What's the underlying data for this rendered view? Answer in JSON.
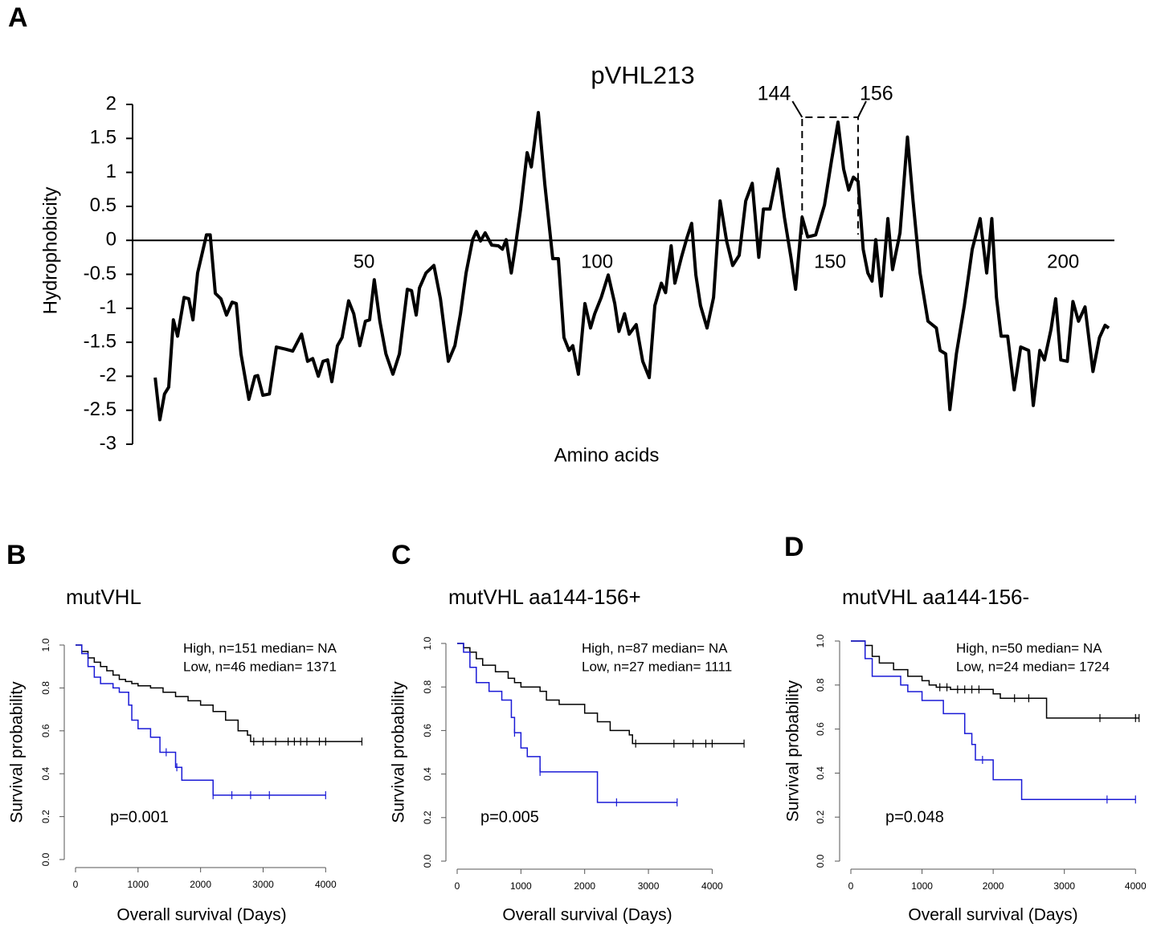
{
  "chart_data": [
    {
      "type": "line",
      "panel": "A",
      "title": "pVHL213",
      "x_label": "Amino acids",
      "y_label": "Hydrophobicity",
      "xlim": [
        0,
        211
      ],
      "ylim": [
        -3,
        2
      ],
      "xticks": [
        50,
        100,
        150,
        200
      ],
      "yticks": [
        -3,
        -2.5,
        -2,
        -1.5,
        -1,
        -0.5,
        0,
        0.5,
        1,
        1.5,
        2
      ],
      "bracket": [
        144,
        156
      ],
      "color": "#000000",
      "x": [
        5.2,
        6.2,
        7.2,
        8.1,
        9.1,
        10,
        11.4,
        12.4,
        13.3,
        14.3,
        16.2,
        17,
        18.1,
        19.3,
        20.5,
        21.7,
        22.6,
        23.6,
        25.3,
        26.6,
        27.2,
        28.3,
        29.7,
        31.2,
        33.1,
        34.7,
        36.6,
        37.9,
        39,
        40.2,
        41.2,
        42.2,
        43.1,
        44.3,
        45.3,
        46.7,
        47.8,
        49.1,
        50.3,
        51.2,
        52.2,
        53.4,
        54.7,
        56.2,
        57.6,
        59.3,
        60.2,
        61.2,
        61.9,
        63.3,
        65,
        66.4,
        68.1,
        69.5,
        70.7,
        71.9,
        73.3,
        74.1,
        75,
        76,
        77.4,
        78.8,
        79.7,
        80.5,
        81.6,
        82.4,
        83.6,
        85,
        85.9,
        87.4,
        88.8,
        90.5,
        91.7,
        92.9,
        94,
        94.8,
        96,
        97.4,
        98.6,
        99.5,
        100.9,
        102.4,
        103.8,
        104.7,
        105.9,
        106.9,
        108.4,
        109.8,
        111.2,
        112.4,
        113.8,
        114.7,
        115.9,
        116.7,
        118.1,
        119.3,
        120.3,
        121.2,
        122.2,
        123.6,
        125,
        126.4,
        127.8,
        129.1,
        130.5,
        131.9,
        133.3,
        134.7,
        135.7,
        137.1,
        138.8,
        140.2,
        141.6,
        142.6,
        144,
        145.2,
        146.9,
        148.8,
        150.3,
        151.7,
        152.9,
        154,
        155,
        156,
        157.1,
        158.1,
        159,
        159.8,
        161,
        162.4,
        163.4,
        165,
        166.6,
        167.8,
        169.3,
        171,
        172.8,
        173.6,
        174.8,
        175.7,
        177.1,
        178.8,
        180.5,
        182.2,
        183.6,
        184.7,
        185.7,
        186.7,
        188.1,
        189.5,
        190.9,
        192.6,
        193.6,
        195,
        196,
        197.4,
        198.4,
        199.5,
        200.9,
        202.1,
        203.3,
        204.7,
        206.4,
        207.8,
        209,
        209.8
      ],
      "values": [
        -2.02,
        -2.64,
        -2.26,
        -2.16,
        -1.17,
        -1.41,
        -0.84,
        -0.86,
        -1.17,
        -0.48,
        0.08,
        0.08,
        -0.78,
        -0.86,
        -1.1,
        -0.91,
        -0.93,
        -1.67,
        -2.34,
        -2.0,
        -1.99,
        -2.28,
        -2.26,
        -1.57,
        -1.6,
        -1.63,
        -1.38,
        -1.78,
        -1.74,
        -2.0,
        -1.78,
        -1.76,
        -2.08,
        -1.55,
        -1.43,
        -0.89,
        -1.08,
        -1.55,
        -1.19,
        -1.17,
        -0.58,
        -1.19,
        -1.67,
        -1.97,
        -1.67,
        -0.72,
        -0.74,
        -1.1,
        -0.7,
        -0.48,
        -0.37,
        -0.86,
        -1.78,
        -1.55,
        -1.08,
        -0.48,
        0.01,
        0.13,
        -0.01,
        0.11,
        -0.07,
        -0.08,
        -0.13,
        0.01,
        -0.48,
        -0.13,
        0.46,
        1.29,
        1.08,
        1.88,
        0.82,
        -0.27,
        -0.27,
        -1.43,
        -1.62,
        -1.55,
        -1.97,
        -0.93,
        -1.29,
        -1.08,
        -0.84,
        -0.51,
        -0.93,
        -1.34,
        -1.08,
        -1.38,
        -1.24,
        -1.78,
        -2.02,
        -0.96,
        -0.63,
        -0.77,
        -0.08,
        -0.63,
        -0.25,
        0.04,
        0.25,
        -0.51,
        -0.96,
        -1.29,
        -0.84,
        0.58,
        -0.01,
        -0.37,
        -0.22,
        0.58,
        0.84,
        -0.25,
        0.46,
        0.46,
        1.05,
        0.34,
        -0.25,
        -0.72,
        0.34,
        0.05,
        0.08,
        0.52,
        1.17,
        1.74,
        1.05,
        0.74,
        0.93,
        0.87,
        -0.13,
        -0.48,
        -0.6,
        0.01,
        -0.82,
        0.32,
        -0.43,
        0.11,
        1.52,
        0.58,
        -0.48,
        -1.19,
        -1.29,
        -1.62,
        -1.67,
        -2.49,
        -1.67,
        -0.96,
        -0.13,
        0.32,
        -0.48,
        0.32,
        -0.84,
        -1.41,
        -1.41,
        -2.2,
        -1.57,
        -1.62,
        -2.43,
        -1.62,
        -1.76,
        -1.31,
        -0.86,
        -1.76,
        -1.78,
        -0.9,
        -1.19,
        -0.98,
        -1.93,
        -1.43,
        -1.25,
        -1.29
      ]
    },
    {
      "type": "survival",
      "panel": "B",
      "title": "mutVHL",
      "x_label": "Overall survival (Days)",
      "y_label": "Survival probability",
      "annotation": "p=0.001",
      "xlim": [
        0,
        4600
      ],
      "ylim": [
        0,
        1
      ],
      "xticks": [
        0,
        1000,
        2000,
        3000,
        4000
      ],
      "yticks": [
        {
          "value": 0,
          "label": "0.0"
        },
        0.2,
        0.4,
        0.6,
        0.8,
        {
          "value": 1,
          "label": "1.0"
        }
      ],
      "series": [
        {
          "name": "High, n=151 median= NA",
          "color": "#000000",
          "x": [
            0,
            100,
            200,
            300,
            400,
            500,
            600,
            700,
            800,
            900,
            1000,
            1200,
            1400,
            1600,
            1800,
            2000,
            2200,
            2400,
            2600,
            2750,
            2800,
            4580
          ],
          "values": [
            1,
            0.97,
            0.94,
            0.92,
            0.9,
            0.88,
            0.86,
            0.84,
            0.83,
            0.82,
            0.81,
            0.8,
            0.78,
            0.76,
            0.74,
            0.72,
            0.69,
            0.65,
            0.6,
            0.58,
            0.55,
            0.55
          ],
          "censored": [
            2850,
            3000,
            3200,
            3400,
            3500,
            3600,
            3700,
            3900,
            4000,
            4580
          ]
        },
        {
          "name": "Low, n=46 median= 1371",
          "color": "#1a1ad6",
          "x": [
            0,
            100,
            200,
            300,
            400,
            600,
            700,
            850,
            900,
            1000,
            1200,
            1350,
            1600,
            1700,
            2200,
            4000
          ],
          "values": [
            1,
            0.96,
            0.9,
            0.85,
            0.82,
            0.8,
            0.78,
            0.72,
            0.65,
            0.61,
            0.57,
            0.5,
            0.43,
            0.37,
            0.3,
            0.3
          ],
          "censored": [
            1450,
            1620,
            2200,
            2500,
            2800,
            3100,
            4000
          ]
        }
      ]
    },
    {
      "type": "survival",
      "panel": "C",
      "title": "mutVHL aa144-156+",
      "x_label": "Overall survival (Days)",
      "y_label": "Survival probability",
      "annotation": "p=0.005",
      "xlim": [
        0,
        4600
      ],
      "ylim": [
        0,
        1
      ],
      "xticks": [
        0,
        1000,
        2000,
        3000,
        4000
      ],
      "yticks": [
        {
          "value": 0,
          "label": "0.0"
        },
        0.2,
        0.4,
        0.6,
        0.8,
        {
          "value": 1,
          "label": "1.0"
        }
      ],
      "series": [
        {
          "name": "High, n=87 median= NA",
          "color": "#000000",
          "x": [
            0,
            100,
            200,
            300,
            400,
            600,
            800,
            900,
            1000,
            1300,
            1400,
            1600,
            2000,
            2200,
            2400,
            2700,
            2750,
            4500
          ],
          "values": [
            1,
            0.98,
            0.96,
            0.93,
            0.9,
            0.87,
            0.84,
            0.82,
            0.8,
            0.78,
            0.74,
            0.72,
            0.68,
            0.64,
            0.6,
            0.58,
            0.54,
            0.54
          ],
          "censored": [
            2800,
            3400,
            3700,
            3900,
            4000,
            4500
          ]
        },
        {
          "name": "Low, n=27 median= 1111",
          "color": "#1a1ad6",
          "x": [
            0,
            100,
            200,
            300,
            500,
            700,
            850,
            900,
            1000,
            1100,
            1300,
            2200,
            3450
          ],
          "values": [
            1,
            0.96,
            0.89,
            0.82,
            0.78,
            0.74,
            0.66,
            0.59,
            0.52,
            0.48,
            0.41,
            0.27,
            0.27
          ],
          "censored": [
            900,
            1300,
            2500,
            3450
          ]
        }
      ]
    },
    {
      "type": "survival",
      "panel": "D",
      "title": "mutVHL aa144-156-",
      "x_label": "Overall survival (Days)",
      "y_label": "Survival probability",
      "annotation": "p=0.048",
      "xlim": [
        0,
        4200
      ],
      "ylim": [
        0,
        1
      ],
      "xticks": [
        0,
        1000,
        2000,
        3000,
        4000
      ],
      "yticks": [
        {
          "value": 0,
          "label": "0.0"
        },
        0.2,
        0.4,
        0.6,
        0.8,
        {
          "value": 1,
          "label": "1.0"
        }
      ],
      "series": [
        {
          "name": "High, n=50 median= NA",
          "color": "#000000",
          "x": [
            0,
            200,
            300,
            400,
            600,
            800,
            1000,
            1100,
            1200,
            1400,
            2000,
            2100,
            2750,
            4050
          ],
          "values": [
            1,
            0.98,
            0.93,
            0.9,
            0.87,
            0.84,
            0.82,
            0.8,
            0.79,
            0.78,
            0.76,
            0.74,
            0.65,
            0.65
          ],
          "censored": [
            1250,
            1350,
            1500,
            1600,
            1700,
            1800,
            2300,
            2500,
            3500,
            4000,
            4050
          ]
        },
        {
          "name": "Low, n=24 median= 1724",
          "color": "#1a1ad6",
          "x": [
            0,
            200,
            300,
            700,
            800,
            1000,
            1300,
            1600,
            1700,
            1750,
            2000,
            2400,
            4000
          ],
          "values": [
            1,
            0.92,
            0.84,
            0.8,
            0.77,
            0.73,
            0.67,
            0.58,
            0.53,
            0.46,
            0.37,
            0.28,
            0.28
          ],
          "censored": [
            1850,
            3600,
            4000
          ]
        }
      ]
    }
  ]
}
